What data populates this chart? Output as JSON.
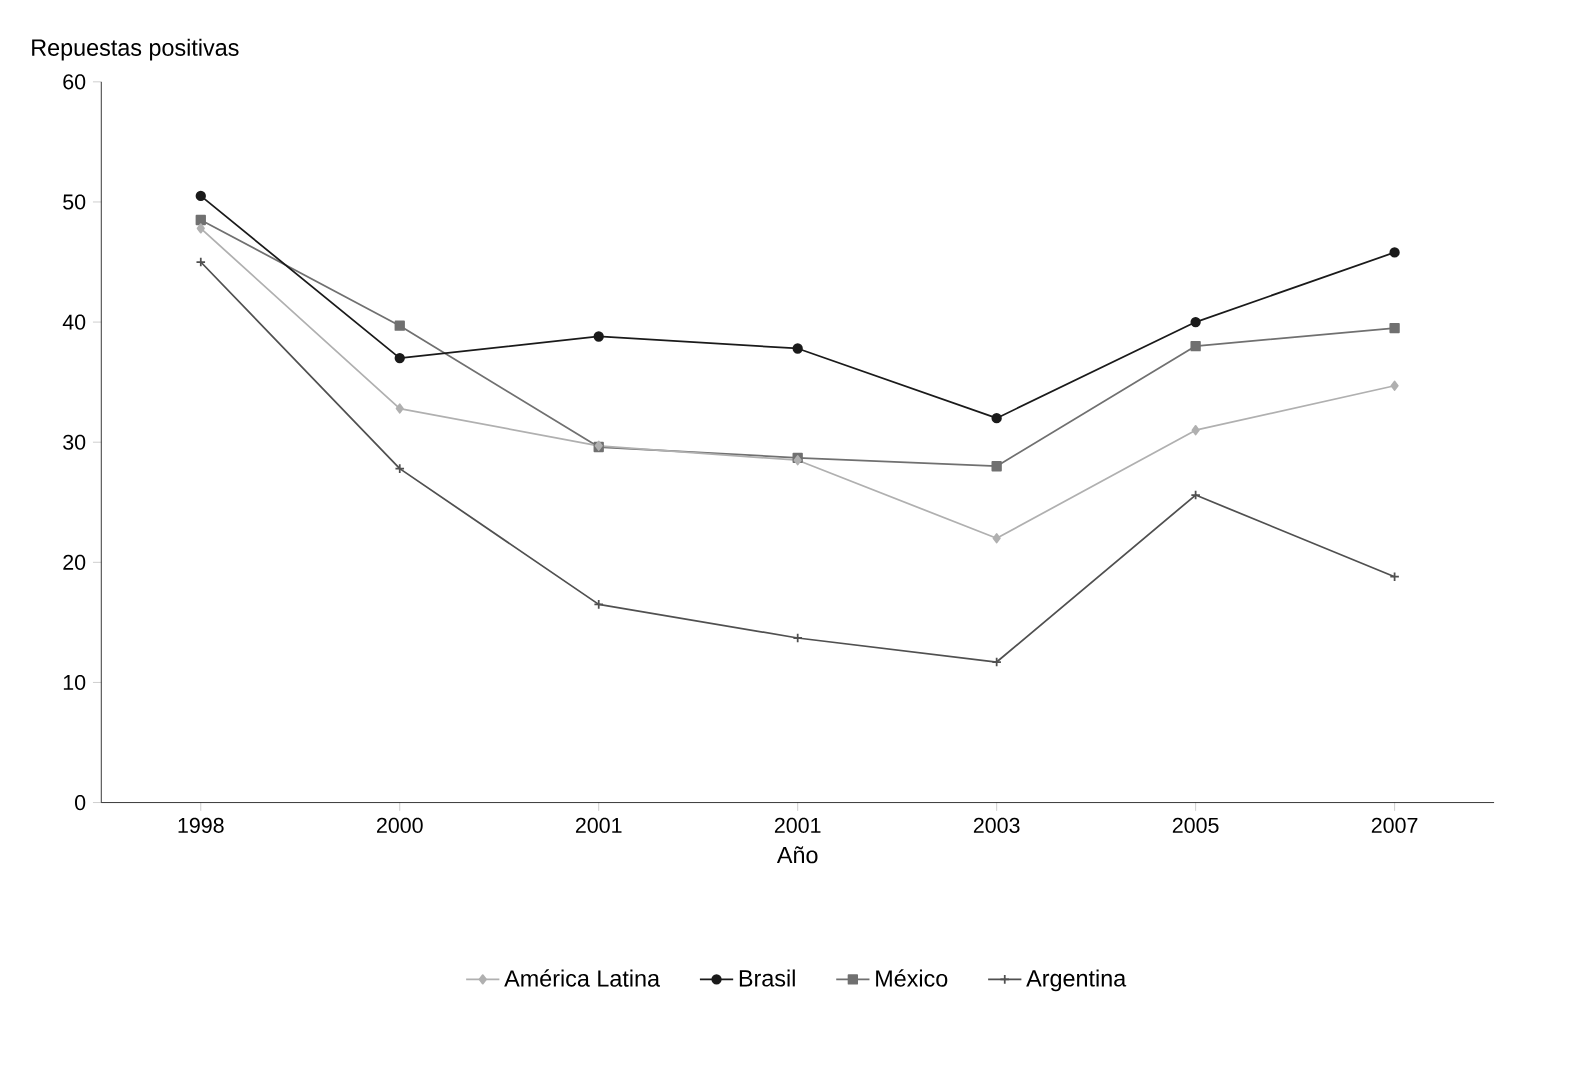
{
  "chart_data": {
    "type": "line",
    "ylabel": "Repuestas positivas",
    "xlabel": "Año",
    "categories": [
      "1998",
      "2000",
      "2001",
      "2001",
      "2003",
      "2005",
      "2007"
    ],
    "ylim": [
      0,
      60
    ],
    "yticks": [
      0,
      10,
      20,
      30,
      40,
      50,
      60
    ],
    "legend": "bottom",
    "grid": false,
    "series": [
      {
        "name": "América Latina",
        "color": "#b0b0b0",
        "marker": "diamond",
        "values": [
          47.8,
          32.8,
          29.7,
          28.5,
          22,
          31,
          34.7
        ]
      },
      {
        "name": "Brasil",
        "color": "#1a1a1a",
        "marker": "circle",
        "values": [
          50.5,
          37,
          38.8,
          37.8,
          32,
          40,
          45.8
        ]
      },
      {
        "name": "México",
        "color": "#707070",
        "marker": "square",
        "values": [
          48.5,
          39.7,
          29.6,
          28.7,
          28,
          38,
          39.5
        ]
      },
      {
        "name": "Argentina",
        "color": "#505050",
        "marker": "cross",
        "values": [
          45,
          27.8,
          16.5,
          13.7,
          11.7,
          25.6,
          18.8
        ]
      }
    ]
  }
}
